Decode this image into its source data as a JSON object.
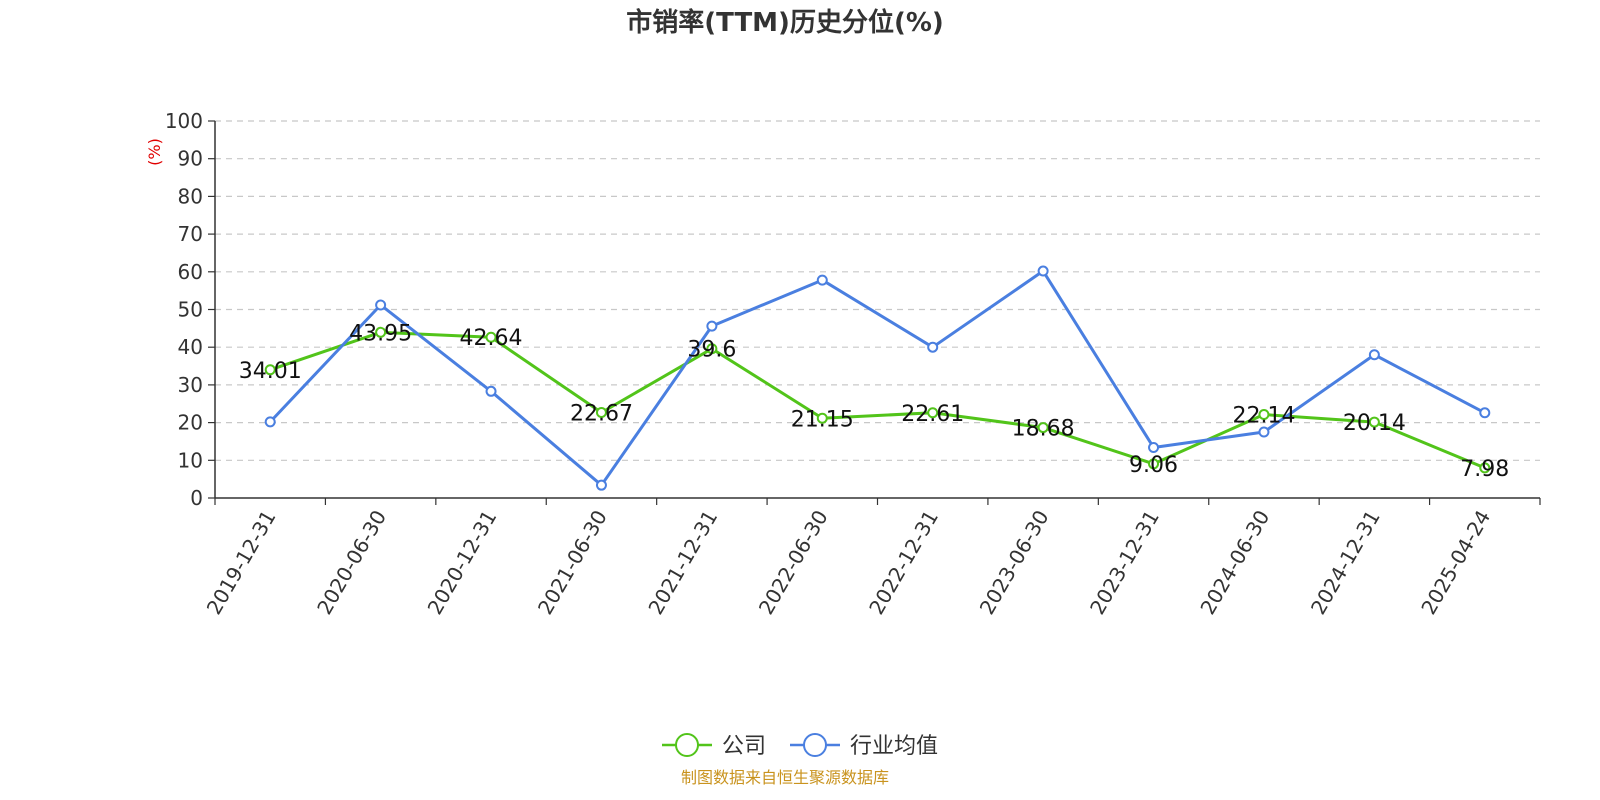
{
  "source_note": "制图数据来自恒生聚源数据库",
  "chart_data": {
    "type": "line",
    "title": "市销率(TTM)历史分位(%)",
    "ylabel": "(%)",
    "xlabel": "",
    "ylim": [
      0,
      100
    ],
    "yticks": [
      0,
      10,
      20,
      30,
      40,
      50,
      60,
      70,
      80,
      90,
      100
    ],
    "categories": [
      "2019-12-31",
      "2020-06-30",
      "2020-12-31",
      "2021-06-30",
      "2021-12-31",
      "2022-06-30",
      "2022-12-31",
      "2023-06-30",
      "2023-12-31",
      "2024-06-30",
      "2024-12-31",
      "2025-04-24"
    ],
    "grid": true,
    "legend_position": "bottom",
    "series": [
      {
        "name": "公司",
        "color": "#52c41a",
        "show_labels": true,
        "values": [
          34.01,
          43.95,
          42.64,
          22.67,
          39.6,
          21.15,
          22.61,
          18.68,
          9.06,
          22.14,
          20.14,
          7.98
        ]
      },
      {
        "name": "行业均值",
        "color": "#4a7fe0",
        "show_labels": false,
        "values": [
          20.2,
          51.2,
          28.3,
          3.4,
          45.6,
          57.8,
          40.0,
          60.2,
          13.4,
          17.5,
          38.0,
          22.6
        ]
      }
    ]
  }
}
